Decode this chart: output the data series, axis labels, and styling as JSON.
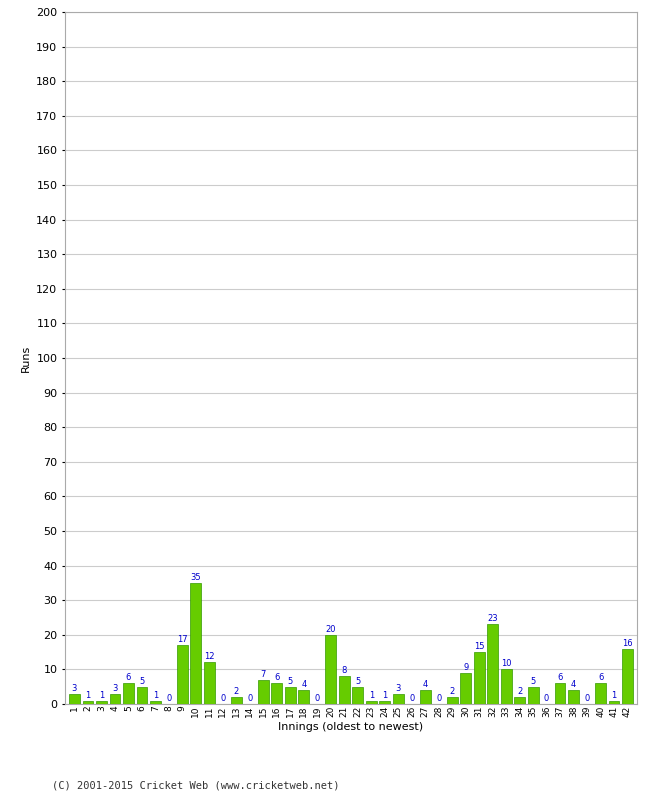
{
  "innings": [
    1,
    2,
    3,
    4,
    5,
    6,
    7,
    8,
    9,
    10,
    11,
    12,
    13,
    14,
    15,
    16,
    17,
    18,
    19,
    20,
    21,
    22,
    23,
    24,
    25,
    26,
    27,
    28,
    29,
    30,
    31,
    32,
    33,
    34,
    35,
    36,
    37,
    38,
    39,
    40,
    41,
    42
  ],
  "runs": [
    3,
    1,
    1,
    3,
    6,
    5,
    1,
    0,
    17,
    35,
    12,
    0,
    2,
    0,
    7,
    6,
    5,
    4,
    0,
    20,
    8,
    5,
    1,
    1,
    3,
    0,
    4,
    0,
    2,
    9,
    15,
    23,
    10,
    2,
    5,
    0,
    6,
    4,
    0,
    6,
    1,
    16
  ],
  "bar_color": "#66cc00",
  "bar_edge_color": "#339900",
  "label_color": "#0000cc",
  "xlabel": "Innings (oldest to newest)",
  "ylabel": "Runs",
  "ylim": [
    0,
    200
  ],
  "yticks": [
    0,
    10,
    20,
    30,
    40,
    50,
    60,
    70,
    80,
    90,
    100,
    110,
    120,
    130,
    140,
    150,
    160,
    170,
    180,
    190,
    200
  ],
  "grid_color": "#cccccc",
  "bg_color": "#ffffff",
  "footer": "(C) 2001-2015 Cricket Web (www.cricketweb.net)"
}
